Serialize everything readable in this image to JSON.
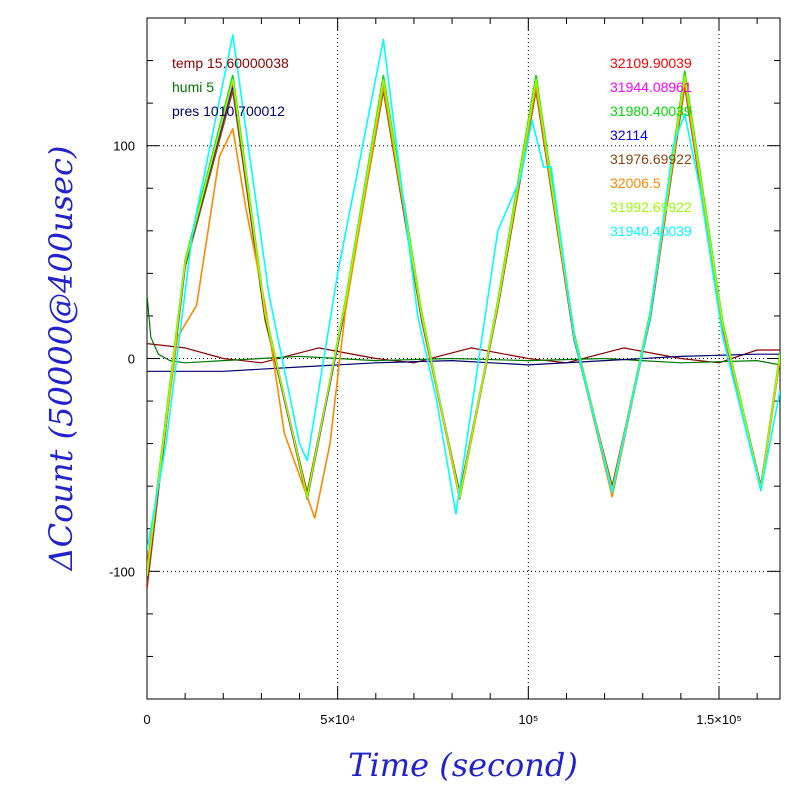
{
  "chart_data": {
    "type": "line",
    "title": "",
    "xlabel": "Time (second)",
    "ylabel": "ΔCount (50000@400usec)",
    "xlim": [
      0,
      166000
    ],
    "ylim": [
      -160,
      160
    ],
    "grid": true,
    "x_ticks": [
      {
        "value": 0,
        "label": "0"
      },
      {
        "value": 50000,
        "label": "5×10⁴"
      },
      {
        "value": 100000,
        "label": "10⁵"
      },
      {
        "value": 150000,
        "label": "1.5×10⁵"
      }
    ],
    "y_ticks": [
      {
        "value": -100,
        "label": "-100"
      },
      {
        "value": 0,
        "label": "0"
      },
      {
        "value": 100,
        "label": "100"
      }
    ],
    "env_legend": [
      {
        "name": "temp",
        "value": "15.60000038",
        "color": "#8b0000"
      },
      {
        "name": "humi",
        "value": "5",
        "color": "#007700"
      },
      {
        "name": "pres",
        "value": "1010.700012",
        "color": "#00006b"
      }
    ],
    "series": [
      {
        "name": "32109.90039",
        "color": "#ff0000",
        "x": [
          0,
          10000,
          22500,
          31000,
          42000,
          52000,
          62000,
          72000,
          82000,
          92000,
          102000,
          112000,
          122000,
          132000,
          141000,
          151000,
          161000,
          166000
        ],
        "y": [
          -108,
          45,
          128,
          20,
          -66,
          25,
          128,
          20,
          -66,
          25,
          128,
          10,
          -63,
          20,
          130,
          15,
          -62,
          0
        ]
      },
      {
        "name": "31944.08961",
        "color": "#ff00ff",
        "x": [
          0,
          10000,
          22500,
          31000,
          42000,
          52000,
          62000,
          72000,
          82000,
          92000,
          102000,
          112000,
          122000,
          132000,
          141000,
          151000,
          161000,
          166000
        ],
        "y": [
          -105,
          44,
          130,
          21,
          -64,
          26,
          130,
          21,
          -64,
          26,
          130,
          11,
          -61,
          21,
          132,
          16,
          -60,
          2
        ]
      },
      {
        "name": "31980.40039",
        "color": "#00dd00",
        "x": [
          0,
          10000,
          22500,
          31000,
          42000,
          52000,
          62000,
          72000,
          82000,
          92000,
          102000,
          112000,
          122000,
          132000,
          141000,
          151000,
          161000,
          166000
        ],
        "y": [
          -100,
          46,
          133,
          22,
          -66,
          27,
          133,
          22,
          -66,
          27,
          133,
          12,
          -62,
          22,
          135,
          17,
          -61,
          3
        ]
      },
      {
        "name": "32114",
        "color": "#0000ee",
        "x": [
          0,
          10000,
          22500,
          31000,
          42000,
          52000,
          62000,
          72000,
          82000,
          92000,
          102000,
          112000,
          122000,
          132000,
          141000,
          151000,
          161000,
          166000
        ],
        "y": [
          -104,
          44,
          127,
          19,
          -65,
          24,
          127,
          19,
          -65,
          24,
          127,
          9,
          -62,
          19,
          129,
          14,
          -61,
          1
        ]
      },
      {
        "name": "31976.69922",
        "color": "#8b4513",
        "x": [
          0,
          10000,
          22500,
          31000,
          42000,
          52000,
          62000,
          72000,
          82000,
          92000,
          102000,
          112000,
          122000,
          132000,
          141000,
          151000,
          161000,
          166000
        ],
        "y": [
          -106,
          43,
          126,
          18,
          -63,
          24,
          126,
          18,
          -63,
          24,
          126,
          9,
          -60,
          19,
          128,
          14,
          -60,
          0
        ]
      },
      {
        "name": "32006.5",
        "color": "#ff8800",
        "x": [
          0,
          8000,
          13000,
          19000,
          22500,
          26000,
          31000,
          36000,
          40000,
          44000,
          48000,
          52000,
          62000,
          72000,
          82000,
          92000,
          102000,
          112000,
          122000,
          132000,
          141000,
          151000,
          161000,
          166000
        ],
        "y": [
          -98,
          10,
          25,
          95,
          108,
          70,
          25,
          -35,
          -55,
          -75,
          -40,
          22,
          128,
          20,
          -66,
          25,
          128,
          10,
          -65,
          20,
          130,
          15,
          -62,
          0
        ]
      },
      {
        "name": "31992.69922",
        "color": "#99ff00",
        "x": [
          0,
          10000,
          22500,
          31000,
          42000,
          52000,
          62000,
          72000,
          82000,
          92000,
          102000,
          112000,
          122000,
          132000,
          141000,
          151000,
          161000,
          166000
        ],
        "y": [
          -102,
          45,
          131,
          21,
          -65,
          26,
          131,
          21,
          -65,
          26,
          131,
          11,
          -62,
          21,
          133,
          16,
          -61,
          2
        ]
      },
      {
        "name": "31940.40039",
        "color": "#00ffff",
        "x": [
          0,
          5000,
          12000,
          22500,
          32000,
          40000,
          42000,
          50000,
          62000,
          71000,
          76000,
          81000,
          92000,
          98000,
          101000,
          104000,
          106000,
          112000,
          122000,
          132000,
          138000,
          141000,
          145000,
          151000,
          161000,
          166000
        ],
        "y": [
          -90,
          -40,
          60,
          152,
          30,
          -40,
          -48,
          40,
          150,
          20,
          -20,
          -73,
          60,
          85,
          112,
          90,
          90,
          10,
          -63,
          20,
          100,
          115,
          80,
          10,
          -62,
          -15
        ]
      },
      {
        "name": "temp",
        "color": "#8b0000",
        "x": [
          0,
          10000,
          20000,
          30000,
          45000,
          60000,
          70000,
          85000,
          100000,
          110000,
          125000,
          140000,
          150000,
          160000,
          166000
        ],
        "y": [
          7,
          5,
          0,
          -2,
          5,
          0,
          -2,
          5,
          0,
          -2,
          5,
          0,
          -2,
          4,
          4
        ]
      },
      {
        "name": "humi",
        "color": "#007700",
        "x": [
          0,
          1000,
          3000,
          6000,
          10000,
          20000,
          40000,
          60000,
          80000,
          100000,
          120000,
          140000,
          160000,
          166000
        ],
        "y": [
          30,
          10,
          2,
          -1,
          -2,
          -1,
          1,
          -1,
          0,
          -1,
          0,
          -2,
          -1,
          -3
        ]
      },
      {
        "name": "pres",
        "color": "#00006b",
        "x": [
          0,
          20000,
          40000,
          60000,
          80000,
          100000,
          120000,
          140000,
          160000,
          166000
        ],
        "y": [
          -6,
          -6,
          -4,
          -2,
          -1,
          -3,
          -1,
          1,
          2,
          2
        ]
      }
    ]
  }
}
